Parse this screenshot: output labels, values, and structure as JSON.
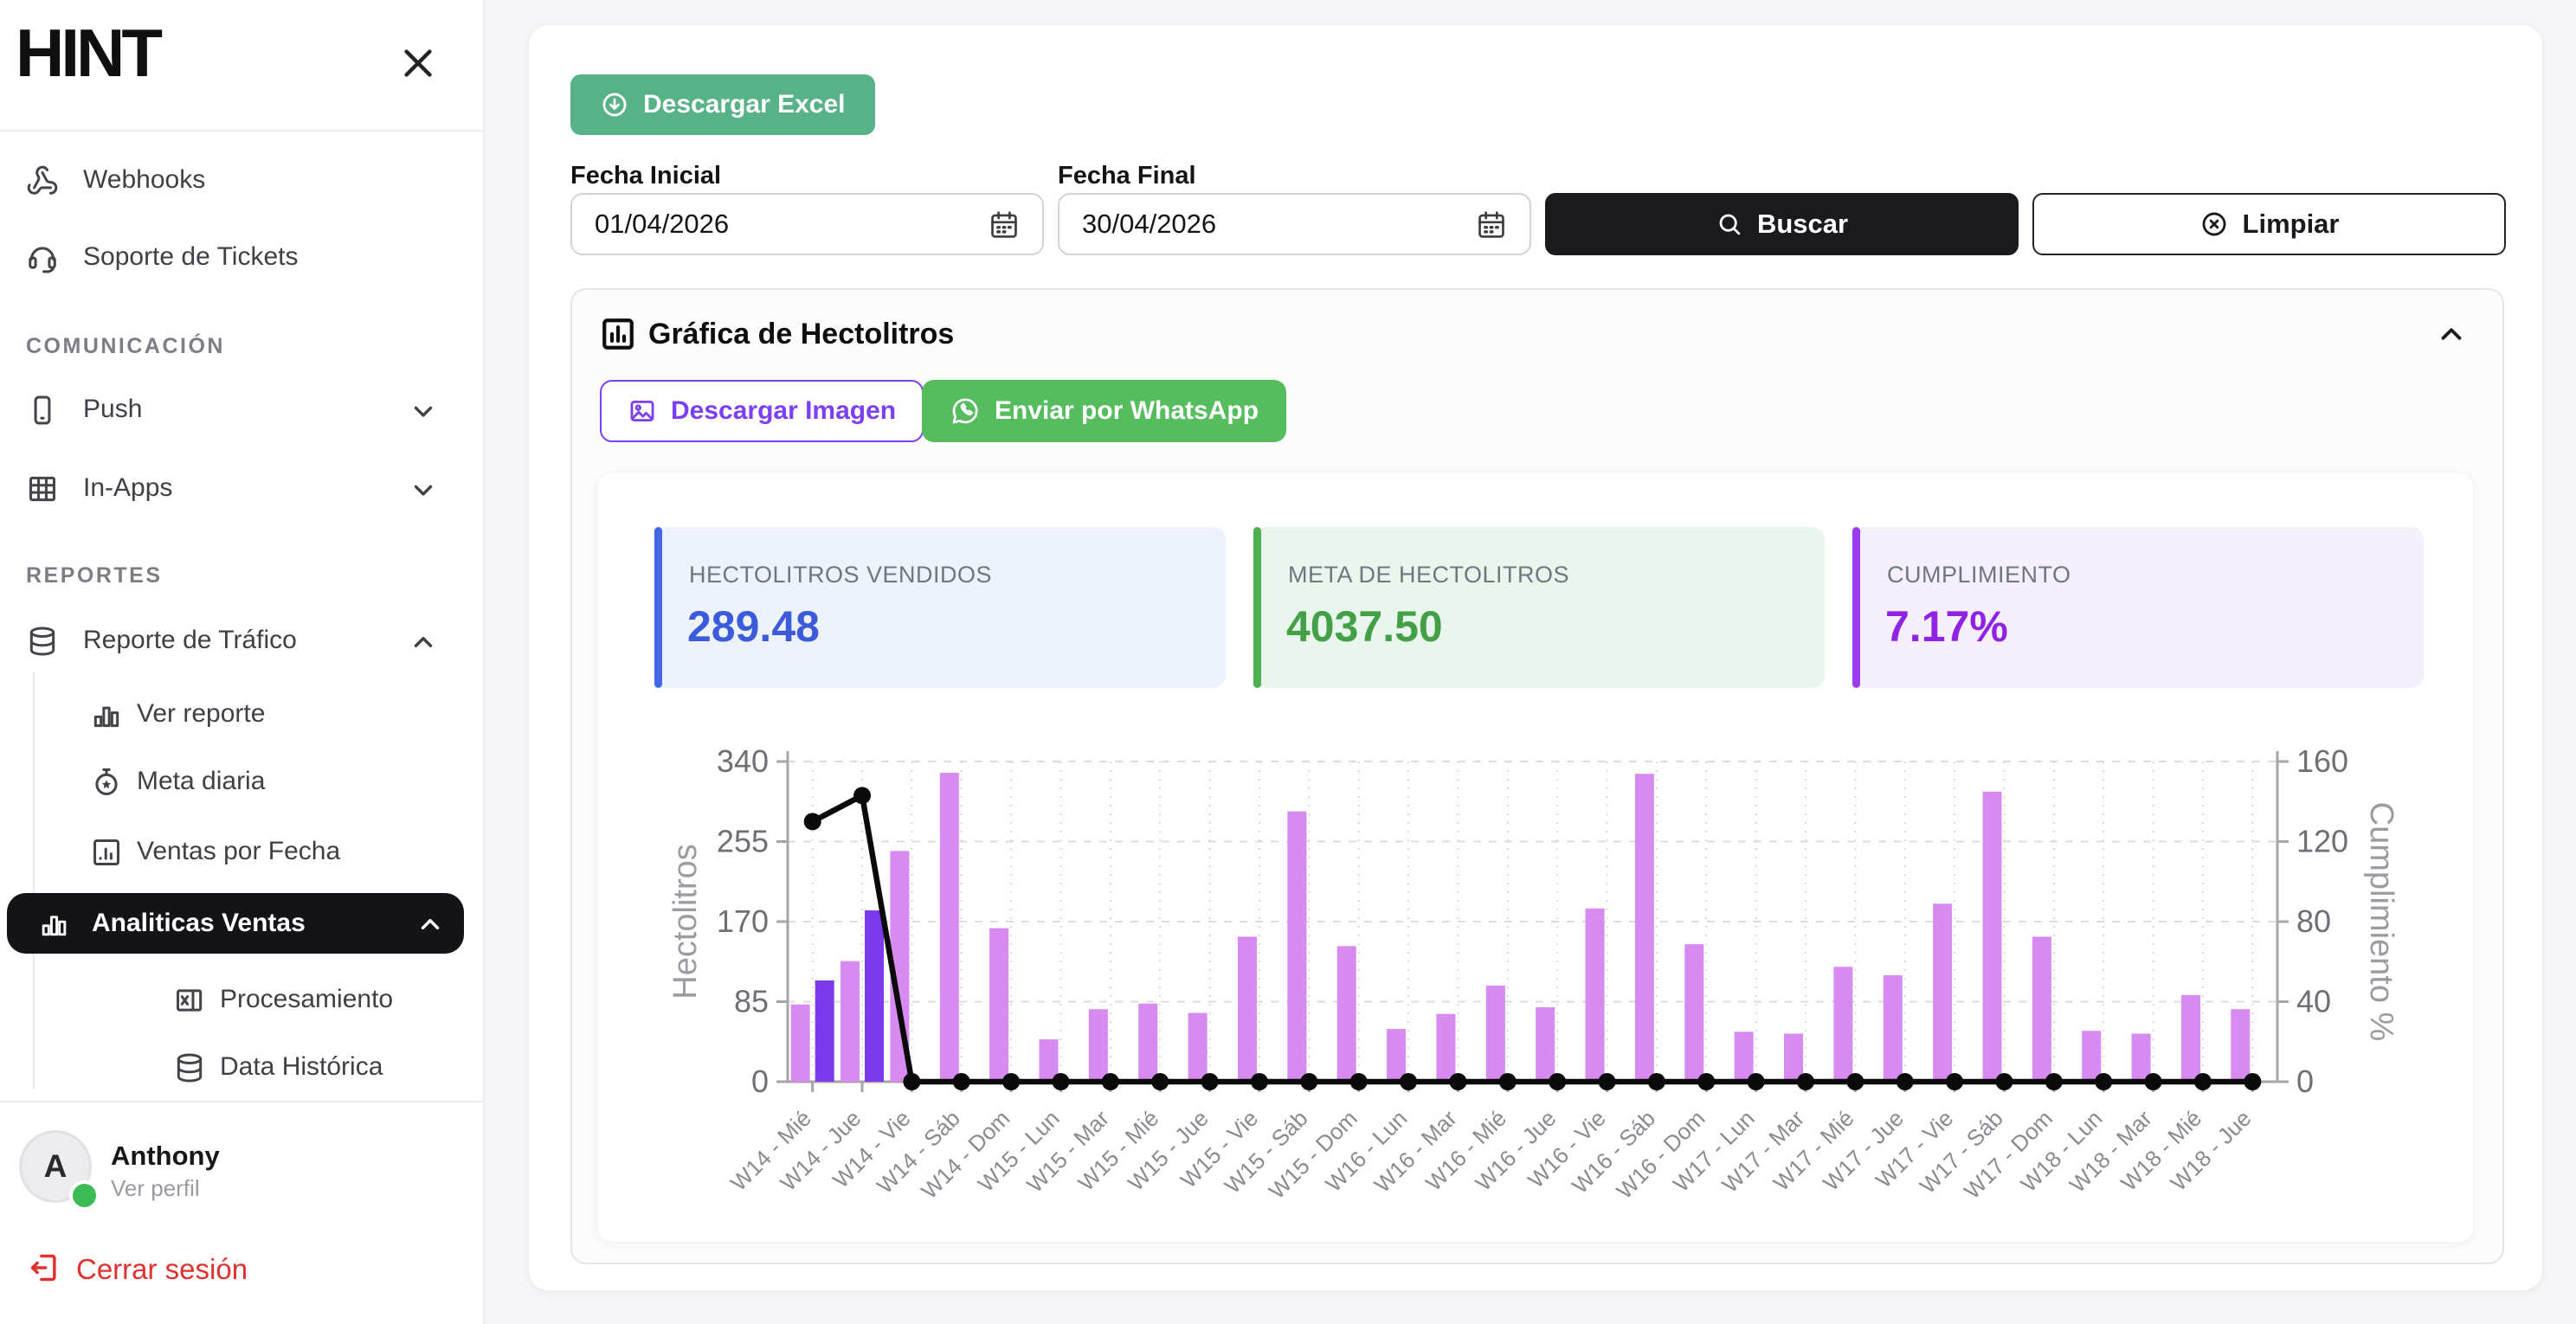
{
  "sidebar": {
    "logo": "HINT",
    "close_icon": "close-icon",
    "items": [
      {
        "label": "Webhooks",
        "icon": "webhook-icon",
        "level": 0
      },
      {
        "label": "Soporte de Tickets",
        "icon": "headset-icon",
        "level": 0
      },
      {
        "label": "COMUNICACIÓN",
        "type": "section"
      },
      {
        "label": "Push",
        "icon": "smartphone-icon",
        "level": 0,
        "chevron": "down"
      },
      {
        "label": "In-Apps",
        "icon": "grid-icon",
        "level": 0,
        "chevron": "down"
      },
      {
        "label": "REPORTES",
        "type": "section"
      },
      {
        "label": "Reporte de Tráfico",
        "icon": "database-icon",
        "level": 0,
        "chevron": "up"
      },
      {
        "label": "Ver reporte",
        "icon": "bar-chart-icon",
        "level": 1
      },
      {
        "label": "Meta diaria",
        "icon": "stopwatch-icon",
        "level": 1
      },
      {
        "label": "Ventas por Fecha",
        "icon": "chart-square-icon",
        "level": 1
      },
      {
        "label": "Analiticas Ventas",
        "icon": "bar-chart-icon",
        "level": 1,
        "active": true,
        "chevron": "up"
      },
      {
        "label": "Procesamiento",
        "icon": "excel-icon",
        "level": 2
      },
      {
        "label": "Data Histórica",
        "icon": "database-icon",
        "level": 2
      }
    ],
    "user": {
      "initial": "A",
      "name": "Anthony",
      "link": "Ver perfil",
      "status_color": "#3dbb54"
    },
    "logout": {
      "label": "Cerrar sesión",
      "icon": "logout-icon",
      "color": "#e03131"
    }
  },
  "toolbar": {
    "download_excel": "Descargar Excel",
    "download_excel_icon": "download-circle-icon",
    "fecha_inicial_label": "Fecha Inicial",
    "fecha_inicial_value": "01/04/2026",
    "fecha_final_label": "Fecha Final",
    "fecha_final_value": "30/04/2026",
    "calendar_icon": "calendar-icon",
    "buscar": "Buscar",
    "buscar_icon": "search-icon",
    "limpiar": "Limpiar",
    "limpiar_icon": "circle-x-icon"
  },
  "chart_card": {
    "title": "Gráfica de Hectolitros",
    "title_icon": "chart-title-icon",
    "collapse_icon": "chevron-up-icon",
    "download_image": "Descargar Imagen",
    "download_image_icon": "image-icon",
    "send_whatsapp": "Enviar por WhatsApp",
    "send_whatsapp_icon": "whatsapp-icon",
    "stats": [
      {
        "label": "HECTOLITROS VENDIDOS",
        "value": "289.48",
        "accent": "#4466e8",
        "value_color": "#3b5bdb",
        "bg": "#edf2fc"
      },
      {
        "label": "META DE HECTOLITROS",
        "value": "4037.50",
        "accent": "#4caf50",
        "value_color": "#43a047",
        "bg": "#e9f6ed"
      },
      {
        "label": "CUMPLIMIENTO",
        "value": "7.17%",
        "accent": "#9d3df2",
        "value_color": "#9023e3",
        "bg": "#f6f0fc"
      }
    ]
  },
  "chart_data": {
    "type": "bar+line",
    "grid": "dashed",
    "categories": [
      "W14 - Mié",
      "W14 - Jue",
      "W14 - Vie",
      "W14 - Sáb",
      "W14 - Dom",
      "W15 - Lun",
      "W15 - Mar",
      "W15 - Mié",
      "W15 - Jue",
      "W15 - Vie",
      "W15 - Sáb",
      "W15 - Dom",
      "W16 - Lun",
      "W16 - Mar",
      "W16 - Mié",
      "W16 - Jue",
      "W16 - Vie",
      "W16 - Sáb",
      "W16 - Dom",
      "W17 - Lun",
      "W17 - Mar",
      "W17 - Mié",
      "W17 - Jue",
      "W17 - Vie",
      "W17 - Sáb",
      "W17 - Dom",
      "W18 - Lun",
      "W18 - Mar",
      "W18 - Mié",
      "W18 - Jue"
    ],
    "series": [
      {
        "name": "Meta de Hectolitros",
        "type": "bar",
        "axis": "left",
        "color": "#d78af0",
        "values": [
          82,
          128,
          245,
          328,
          163,
          45,
          77,
          83,
          73,
          154,
          287,
          144,
          56,
          72,
          102,
          79,
          184,
          327,
          146,
          53,
          51,
          122,
          113,
          189,
          308,
          154,
          54,
          51,
          92,
          77
        ]
      },
      {
        "name": "Hectolitros vendidos",
        "type": "bar",
        "axis": "left",
        "color": "#7c3aed",
        "values": [
          107.56,
          181.92,
          0,
          0,
          0,
          0,
          0,
          0,
          0,
          0,
          0,
          0,
          0,
          0,
          0,
          0,
          0,
          0,
          0,
          0,
          0,
          0,
          0,
          0,
          0,
          0,
          0,
          0,
          0,
          0
        ]
      },
      {
        "name": "Cumplimiento %",
        "type": "line",
        "axis": "right",
        "color": "#0a0a0a",
        "values": [
          130,
          143,
          0,
          0,
          0,
          0,
          0,
          0,
          0,
          0,
          0,
          0,
          0,
          0,
          0,
          0,
          0,
          0,
          0,
          0,
          0,
          0,
          0,
          0,
          0,
          0,
          0,
          0,
          0,
          0
        ]
      }
    ],
    "left_axis": {
      "title": "Hectolitros",
      "ticks": [
        0,
        85,
        170,
        255,
        340
      ],
      "max": 340
    },
    "right_axis": {
      "title": "Cumplimiento %",
      "ticks": [
        0,
        40,
        80,
        120,
        160
      ],
      "max": 160
    }
  }
}
